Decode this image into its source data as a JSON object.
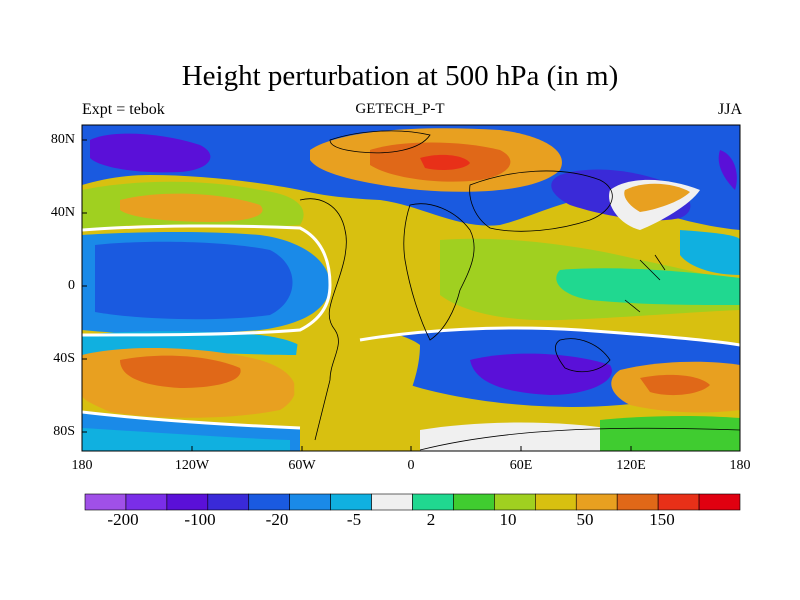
{
  "title": "Height perturbation at 500 hPa (in m)",
  "subtitle_left": "Expt = tebok",
  "subtitle_center": "GETECH_P-T",
  "subtitle_right": "JJA",
  "lat_ticks": [
    "80N",
    "40N",
    "0",
    "40S",
    "80S"
  ],
  "lon_ticks": [
    "180",
    "120W",
    "60W",
    "0",
    "60E",
    "120E",
    "180"
  ],
  "colorbar": {
    "colors": [
      "#a050e8",
      "#7a2ee8",
      "#5a10d8",
      "#3a2ad8",
      "#1a5ae0",
      "#1a8ae8",
      "#10b0e0",
      "#f0f0f0",
      "#20d890",
      "#40cc30",
      "#a0d020",
      "#d8c010",
      "#e8a020",
      "#e06818",
      "#e83018",
      "#e00010"
    ],
    "labels": [
      "-200",
      "-100",
      "-20",
      "-5",
      "2",
      "10",
      "50",
      "150"
    ]
  },
  "coast_color": "#000000"
}
